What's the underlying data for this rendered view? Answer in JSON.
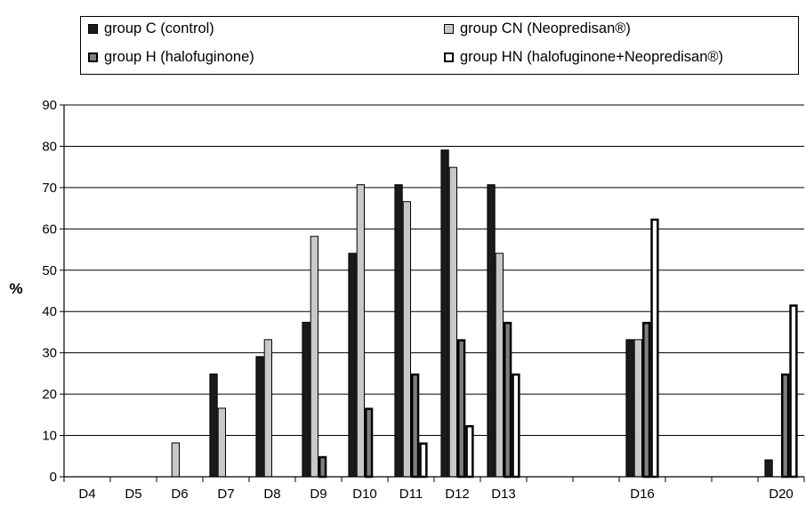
{
  "chart_data": {
    "type": "bar",
    "title": "",
    "xlabel": "",
    "ylabel": "%",
    "ylim": [
      0,
      90
    ],
    "yticks": [
      0,
      10,
      20,
      30,
      40,
      50,
      60,
      70,
      80,
      90
    ],
    "grid": true,
    "legend_position": "top",
    "categories": [
      "D4",
      "D5",
      "D6",
      "D7",
      "D8",
      "D9",
      "D10",
      "D11",
      "D12",
      "D13",
      "",
      "",
      "D16",
      "",
      "",
      "D20"
    ],
    "series": [
      {
        "name": "group C (control)",
        "fill": "#1a1a1a",
        "stroke": "#000000",
        "stroke_width": 1,
        "values": [
          0,
          0,
          0,
          25,
          29.2,
          37.5,
          54.2,
          70.8,
          79.2,
          70.8,
          null,
          null,
          33.3,
          null,
          null,
          4.2
        ]
      },
      {
        "name": "group CN (Neopredisan®)",
        "fill": "#c8c8c8",
        "stroke": "#000000",
        "stroke_width": 1,
        "values": [
          0,
          0,
          8.3,
          16.7,
          33.3,
          58.3,
          70.8,
          66.7,
          75,
          54.2,
          null,
          null,
          33.3,
          null,
          null,
          0
        ]
      },
      {
        "name": "group H (halofuginone)",
        "fill": "#7f7f7f",
        "stroke": "#000000",
        "stroke_width": 2.5,
        "values": [
          0,
          0,
          0,
          0,
          0,
          5,
          16.7,
          25,
          33.3,
          37.5,
          null,
          null,
          37.5,
          null,
          null,
          25
        ]
      },
      {
        "name": "group HN (halofuginone+Neopredisan®)",
        "fill": "#ffffff",
        "stroke": "#000000",
        "stroke_width": 2.5,
        "values": [
          0,
          0,
          0,
          0,
          0,
          0,
          0,
          8.3,
          12.5,
          25,
          null,
          null,
          62.5,
          null,
          null,
          41.7
        ]
      }
    ]
  }
}
